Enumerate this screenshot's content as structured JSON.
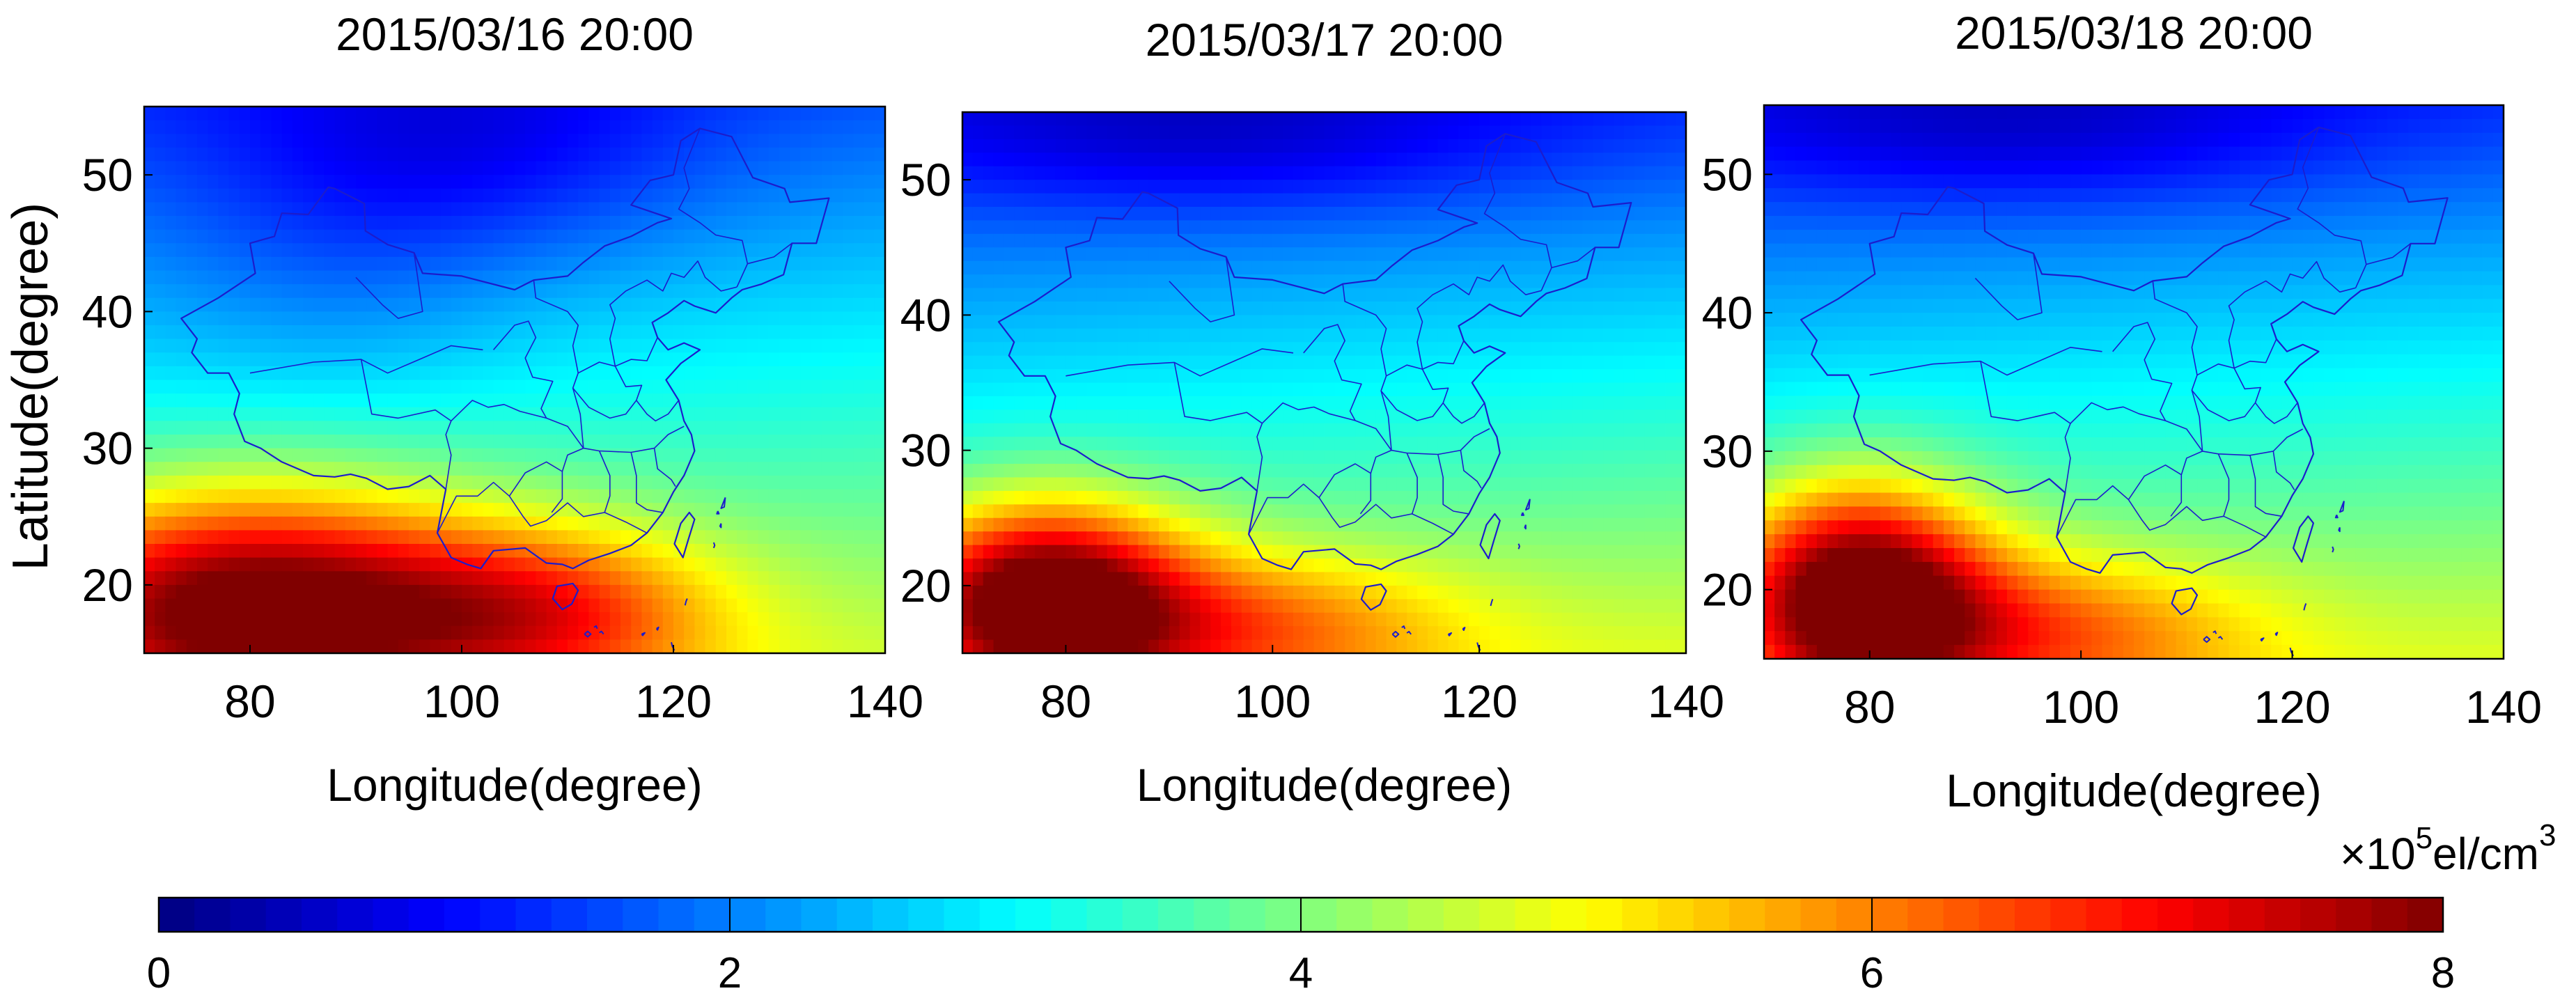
{
  "chart_data": {
    "type": "heatmap",
    "x_label": "Longitude(degree)",
    "y_label": "Latitude(degree)",
    "xlim": [
      70,
      140
    ],
    "ylim": [
      15,
      55
    ],
    "x_ticks": [
      80,
      100,
      120,
      140
    ],
    "y_ticks": [
      20,
      30,
      40,
      50
    ],
    "panels": [
      {
        "title": "2015/03/16 20:00",
        "field": {
          "base": 3.0,
          "lat_gradient": 0.072,
          "lon_gradient": 0.004,
          "blobs": [
            {
              "lon": 80,
              "lat": 18.5,
              "amp": 4.4,
              "sigma_lon": 16,
              "sigma_lat": 6.0
            },
            {
              "lon": 108,
              "lat": 18,
              "amp": 2.2,
              "sigma_lon": 12,
              "sigma_lat": 4.5
            },
            {
              "lon": 88,
              "lat": 44,
              "amp": -0.45,
              "sigma_lon": 12,
              "sigma_lat": 8
            },
            {
              "lon": 102,
              "lat": 52,
              "amp": -0.8,
              "sigma_lon": 15,
              "sigma_lat": 6
            }
          ]
        }
      },
      {
        "title": "2015/03/17 20:00",
        "field": {
          "base": 2.95,
          "lat_gradient": 0.083,
          "lon_gradient": 0.004,
          "blobs": [
            {
              "lon": 78,
              "lat": 19,
              "amp": 4.6,
              "sigma_lon": 9.5,
              "sigma_lat": 5.0
            },
            {
              "lon": 98,
              "lat": 17,
              "amp": 1.8,
              "sigma_lon": 14,
              "sigma_lat": 4.0
            },
            {
              "lon": 95,
              "lat": 53,
              "amp": -0.8,
              "sigma_lon": 22,
              "sigma_lat": 4.0
            }
          ]
        }
      },
      {
        "title": "2015/03/18 20:00",
        "field": {
          "base": 2.95,
          "lat_gradient": 0.083,
          "lon_gradient": 0.004,
          "blobs": [
            {
              "lon": 79,
              "lat": 20,
              "amp": 4.5,
              "sigma_lon": 8.5,
              "sigma_lat": 5.5
            },
            {
              "lon": 96,
              "lat": 17,
              "amp": 1.9,
              "sigma_lon": 14,
              "sigma_lat": 4.0
            },
            {
              "lon": 95,
              "lat": 53,
              "amp": -0.8,
              "sigma_lon": 22,
              "sigma_lat": 4.0
            }
          ]
        }
      }
    ],
    "colorbar": {
      "label_base": "×10",
      "label_exponent": "5",
      "label_unit": "el/cm",
      "label_unit_exponent": "3",
      "range": [
        0,
        8
      ],
      "ticks": [
        0,
        2,
        4,
        6,
        8
      ],
      "colormap": "jet"
    },
    "map_outline": {
      "color": "#1c1ccc",
      "china_border": [
        [
          73.5,
          39.5
        ],
        [
          75,
          38
        ],
        [
          74.5,
          37
        ],
        [
          76,
          35.5
        ],
        [
          78,
          35.5
        ],
        [
          79,
          34
        ],
        [
          78.5,
          32.5
        ],
        [
          79.5,
          30.5
        ],
        [
          81,
          30
        ],
        [
          83,
          29
        ],
        [
          86,
          28
        ],
        [
          88,
          27.9
        ],
        [
          89.5,
          28.1
        ],
        [
          91,
          27.8
        ],
        [
          93,
          27
        ],
        [
          95,
          27.2
        ],
        [
          97,
          28
        ],
        [
          98.5,
          27
        ],
        [
          98,
          25
        ],
        [
          97.7,
          23.8
        ],
        [
          99,
          22
        ],
        [
          100.5,
          21.5
        ],
        [
          101.8,
          21.2
        ],
        [
          103,
          22.5
        ],
        [
          106,
          22.7
        ],
        [
          108,
          21.6
        ],
        [
          109.5,
          21.5
        ],
        [
          110.5,
          21.2
        ],
        [
          112,
          21.8
        ],
        [
          114,
          22.3
        ],
        [
          116,
          22.9
        ],
        [
          117.5,
          23.8
        ],
        [
          119,
          25.3
        ],
        [
          120,
          26.8
        ],
        [
          121,
          28
        ],
        [
          122,
          29.8
        ],
        [
          121.7,
          31
        ],
        [
          121,
          32
        ],
        [
          120.5,
          33.5
        ],
        [
          119.3,
          35
        ],
        [
          120.7,
          36.2
        ],
        [
          122.5,
          37.2
        ],
        [
          121,
          37.7
        ],
        [
          119.5,
          37.2
        ],
        [
          118.5,
          38.1
        ],
        [
          118,
          39.2
        ],
        [
          119.5,
          39.9
        ],
        [
          121,
          40.8
        ],
        [
          122,
          40.4
        ],
        [
          124,
          39.9
        ],
        [
          125.5,
          41
        ],
        [
          126.5,
          41.6
        ],
        [
          128.3,
          42
        ],
        [
          130.4,
          42.7
        ],
        [
          131.2,
          45
        ],
        [
          133.5,
          45
        ],
        [
          134.7,
          48.3
        ],
        [
          131,
          48
        ],
        [
          130.5,
          49
        ],
        [
          127.5,
          49.8
        ],
        [
          125.5,
          52.8
        ],
        [
          122.5,
          53.4
        ],
        [
          120.7,
          52.5
        ],
        [
          120,
          50
        ],
        [
          117.8,
          49.6
        ],
        [
          116,
          47.8
        ],
        [
          119.8,
          46.8
        ],
        [
          118.5,
          46.5
        ],
        [
          116,
          45.5
        ],
        [
          113.5,
          44.8
        ],
        [
          111.5,
          43.6
        ],
        [
          110,
          42.6
        ],
        [
          106.8,
          42.3
        ],
        [
          105,
          41.6
        ],
        [
          100,
          42.6
        ],
        [
          96.3,
          42.8
        ],
        [
          95.5,
          44.3
        ],
        [
          93,
          44.9
        ],
        [
          90.9,
          45.9
        ],
        [
          90.8,
          47.9
        ],
        [
          88,
          49
        ],
        [
          87.4,
          49.1
        ],
        [
          85.5,
          47.1
        ],
        [
          83,
          47.2
        ],
        [
          82.3,
          45.5
        ],
        [
          80,
          45
        ],
        [
          80.5,
          42.8
        ],
        [
          77,
          41
        ],
        [
          73.5,
          39.5
        ]
      ],
      "hainan": [
        [
          108.6,
          19
        ],
        [
          109,
          19.9
        ],
        [
          110.5,
          20.1
        ],
        [
          111,
          19.6
        ],
        [
          110.4,
          18.6
        ],
        [
          109.5,
          18.2
        ],
        [
          108.6,
          19
        ]
      ],
      "taiwan": [
        [
          120.1,
          23
        ],
        [
          120.7,
          24.5
        ],
        [
          121.5,
          25.3
        ],
        [
          122,
          24.8
        ],
        [
          121.4,
          23.3
        ],
        [
          120.9,
          22
        ],
        [
          120.1,
          23
        ]
      ],
      "provinces": [
        [
          [
            80,
            35.5
          ],
          [
            86,
            36.3
          ],
          [
            90.5,
            36.5
          ],
          [
            93,
            35.5
          ],
          [
            96,
            36.5
          ],
          [
            99,
            37.5
          ],
          [
            102,
            37.2
          ]
        ],
        [
          [
            90.5,
            36.5
          ],
          [
            91.5,
            32.5
          ],
          [
            94,
            32.2
          ],
          [
            97.5,
            32.8
          ],
          [
            99,
            32
          ]
        ],
        [
          [
            98.5,
            27
          ],
          [
            99,
            29.5
          ],
          [
            98.5,
            31
          ],
          [
            99,
            32
          ],
          [
            101,
            33.5
          ],
          [
            102.5,
            33
          ],
          [
            104,
            33.2
          ],
          [
            105.5,
            32.7
          ],
          [
            108,
            32.2
          ],
          [
            110,
            31.6
          ],
          [
            111.5,
            30
          ],
          [
            113,
            29.8
          ],
          [
            116,
            29.7
          ],
          [
            118.2,
            30
          ],
          [
            119.5,
            31
          ],
          [
            121,
            31.6
          ]
        ],
        [
          [
            97.7,
            23.8
          ],
          [
            99.5,
            26.5
          ],
          [
            101.5,
            26.5
          ],
          [
            103,
            27.5
          ],
          [
            104.5,
            26.5
          ],
          [
            105.8,
            25
          ],
          [
            106.5,
            24.3
          ],
          [
            108,
            24.7
          ],
          [
            110,
            26
          ],
          [
            111.5,
            25
          ],
          [
            113.5,
            25.3
          ],
          [
            115.5,
            24.6
          ],
          [
            117.5,
            23.8
          ]
        ],
        [
          [
            104.5,
            26.5
          ],
          [
            106,
            28.2
          ],
          [
            108,
            29
          ],
          [
            109.5,
            28.3
          ],
          [
            109.5,
            26.3
          ],
          [
            108.5,
            25.3
          ]
        ],
        [
          [
            109.5,
            28.3
          ],
          [
            110,
            29.5
          ],
          [
            111.5,
            30
          ],
          [
            111.2,
            32.5
          ],
          [
            110.5,
            34.4
          ],
          [
            111,
            35.5
          ],
          [
            110.5,
            37.5
          ],
          [
            111,
            39
          ],
          [
            110,
            40
          ],
          [
            107,
            41
          ],
          [
            106.8,
            42.3
          ]
        ],
        [
          [
            111,
            35.5
          ],
          [
            113,
            36.3
          ],
          [
            114.5,
            36
          ],
          [
            114,
            38
          ],
          [
            114.5,
            39.5
          ],
          [
            114,
            40.5
          ],
          [
            115.5,
            41.5
          ],
          [
            117.5,
            42.3
          ],
          [
            119,
            41.5
          ],
          [
            119.8,
            42.8
          ],
          [
            121,
            42.5
          ],
          [
            122.3,
            43.7
          ],
          [
            123,
            42.5
          ],
          [
            124.5,
            41.5
          ],
          [
            126,
            41.8
          ]
        ],
        [
          [
            110.5,
            34.4
          ],
          [
            112,
            33
          ],
          [
            114,
            32.2
          ],
          [
            115.5,
            32.5
          ],
          [
            116.5,
            33.5
          ],
          [
            117,
            34.6
          ],
          [
            115.5,
            34.5
          ],
          [
            114.5,
            36
          ],
          [
            116,
            36.5
          ],
          [
            117.5,
            36.4
          ],
          [
            118.5,
            38.1
          ]
        ],
        [
          [
            116.5,
            33.5
          ],
          [
            117.5,
            32.5
          ],
          [
            118.3,
            32
          ],
          [
            119.5,
            32.5
          ],
          [
            120.5,
            33.5
          ]
        ],
        [
          [
            113,
            29.8
          ],
          [
            114,
            28
          ],
          [
            114,
            26.5
          ],
          [
            113.5,
            25.3
          ]
        ],
        [
          [
            116,
            29.7
          ],
          [
            116.5,
            28
          ],
          [
            116.5,
            26
          ],
          [
            117.5,
            25.5
          ],
          [
            119,
            25.3
          ]
        ],
        [
          [
            118.2,
            30
          ],
          [
            118.5,
            28.5
          ],
          [
            119.8,
            27.7
          ],
          [
            120.2,
            27.2
          ]
        ],
        [
          [
            103,
            37.2
          ],
          [
            105,
            39
          ],
          [
            106.3,
            39.3
          ],
          [
            107,
            38.1
          ],
          [
            106,
            36.6
          ],
          [
            106.7,
            35.2
          ],
          [
            108.6,
            34.9
          ],
          [
            107.5,
            32.9
          ],
          [
            108,
            32.2
          ]
        ],
        [
          [
            126,
            41.8
          ],
          [
            127,
            43.5
          ],
          [
            126.5,
            45.2
          ],
          [
            124,
            45.6
          ],
          [
            122.5,
            46.5
          ],
          [
            120.5,
            47.5
          ],
          [
            121.5,
            49
          ],
          [
            121,
            50.5
          ],
          [
            122.5,
            53.4
          ]
        ],
        [
          [
            127,
            43.5
          ],
          [
            129.5,
            44
          ],
          [
            131.2,
            45
          ]
        ],
        [
          [
            95.5,
            44.3
          ],
          [
            96.3,
            40
          ],
          [
            94,
            39.5
          ],
          [
            92.5,
            40.5
          ],
          [
            90,
            42.5
          ]
        ]
      ],
      "islands": [
        [
          [
            124.2,
            25.4
          ],
          [
            124.1,
            25.2
          ],
          [
            124.3,
            25.2
          ],
          [
            124.2,
            25.4
          ]
        ],
        [
          [
            124.9,
            26.4
          ],
          [
            124.5,
            25.6
          ],
          [
            124.8,
            25.7
          ],
          [
            124.9,
            26.4
          ]
        ],
        [
          [
            124.5,
            24.5
          ],
          [
            124.5,
            24.2
          ],
          [
            124.4,
            24.3
          ],
          [
            124.5,
            24.5
          ]
        ],
        [
          [
            123.8,
            22.7
          ],
          [
            123.9,
            22.9
          ],
          [
            123.8,
            23.1
          ]
        ],
        [
          [
            117,
            16.4
          ],
          [
            117.1,
            16.3
          ],
          [
            117.3,
            16.5
          ],
          [
            117,
            16.4
          ]
        ],
        [
          [
            118.4,
            16.8
          ],
          [
            118.5,
            16.7
          ],
          [
            118.6,
            16.9
          ],
          [
            118.4,
            16.8
          ]
        ],
        [
          [
            121.3,
            19
          ],
          [
            121.2,
            18.8
          ],
          [
            121.1,
            18.5
          ]
        ],
        [
          [
            119.8,
            15.8
          ],
          [
            119.9,
            15.5
          ],
          [
            120.1,
            15.2
          ]
        ],
        [
          [
            111.6,
            16.4
          ],
          [
            111.9,
            16.6
          ],
          [
            112.2,
            16.4
          ],
          [
            111.9,
            16.2
          ],
          [
            111.6,
            16.4
          ]
        ],
        [
          [
            112.5,
            16.9
          ],
          [
            112.7,
            17.0
          ],
          [
            112.8,
            16.8
          ]
        ],
        [
          [
            113.0,
            16.5
          ],
          [
            113.2,
            16.6
          ],
          [
            113.4,
            16.4
          ]
        ]
      ]
    }
  }
}
